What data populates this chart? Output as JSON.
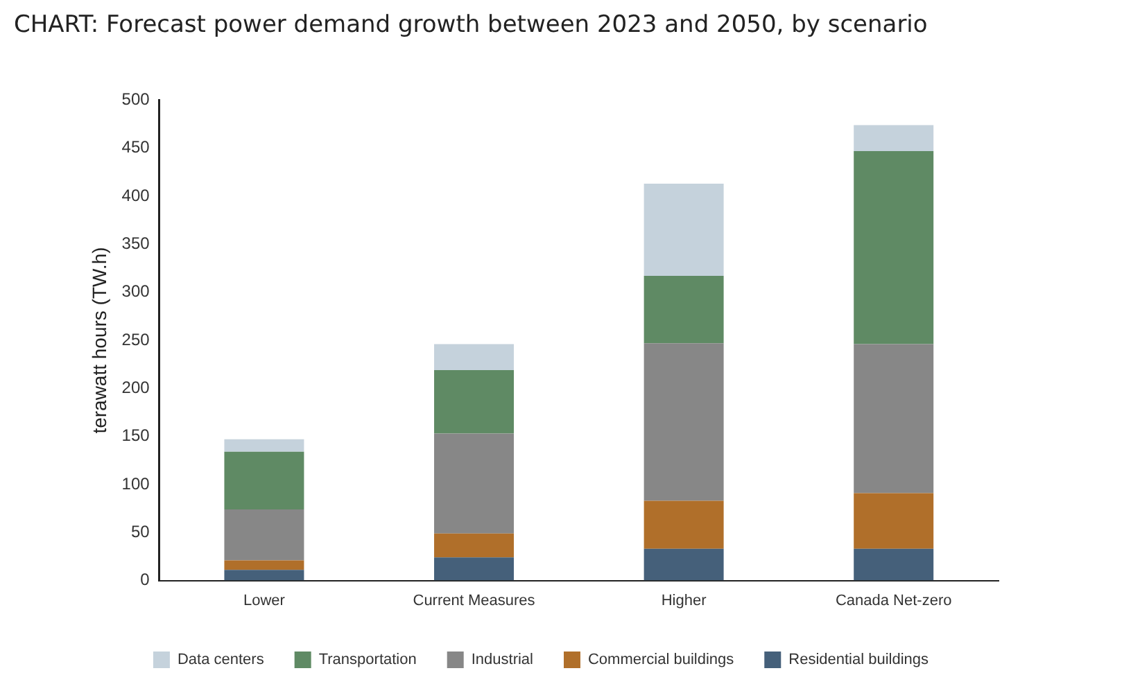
{
  "chart_data": {
    "type": "bar",
    "title": "CHART: Forecast power demand growth between 2023 and 2050, by scenario",
    "ylabel": "terawatt hours (TW.h)",
    "categories": [
      "Lower",
      "Current Measures",
      "Higher",
      "Canada Net-zero"
    ],
    "stacked": true,
    "ylim": [
      0,
      500
    ],
    "yticks": [
      0,
      50,
      100,
      150,
      200,
      250,
      300,
      350,
      400,
      450,
      500
    ],
    "grid": false,
    "legend": "bottom",
    "series": [
      {
        "name": "Residential buildings",
        "color": "#45607a",
        "values": [
          11,
          24,
          33,
          33
        ]
      },
      {
        "name": "Commercial buildings",
        "color": "#b06f2a",
        "values": [
          10,
          25,
          50,
          58
        ]
      },
      {
        "name": "Industrial",
        "color": "#878787",
        "values": [
          53,
          104,
          164,
          155
        ]
      },
      {
        "name": "Transportation",
        "color": "#5f8a64",
        "values": [
          60,
          66,
          70,
          201
        ]
      },
      {
        "name": "Data centers",
        "color": "#c5d2dc",
        "values": [
          13,
          27,
          96,
          27
        ]
      }
    ]
  }
}
